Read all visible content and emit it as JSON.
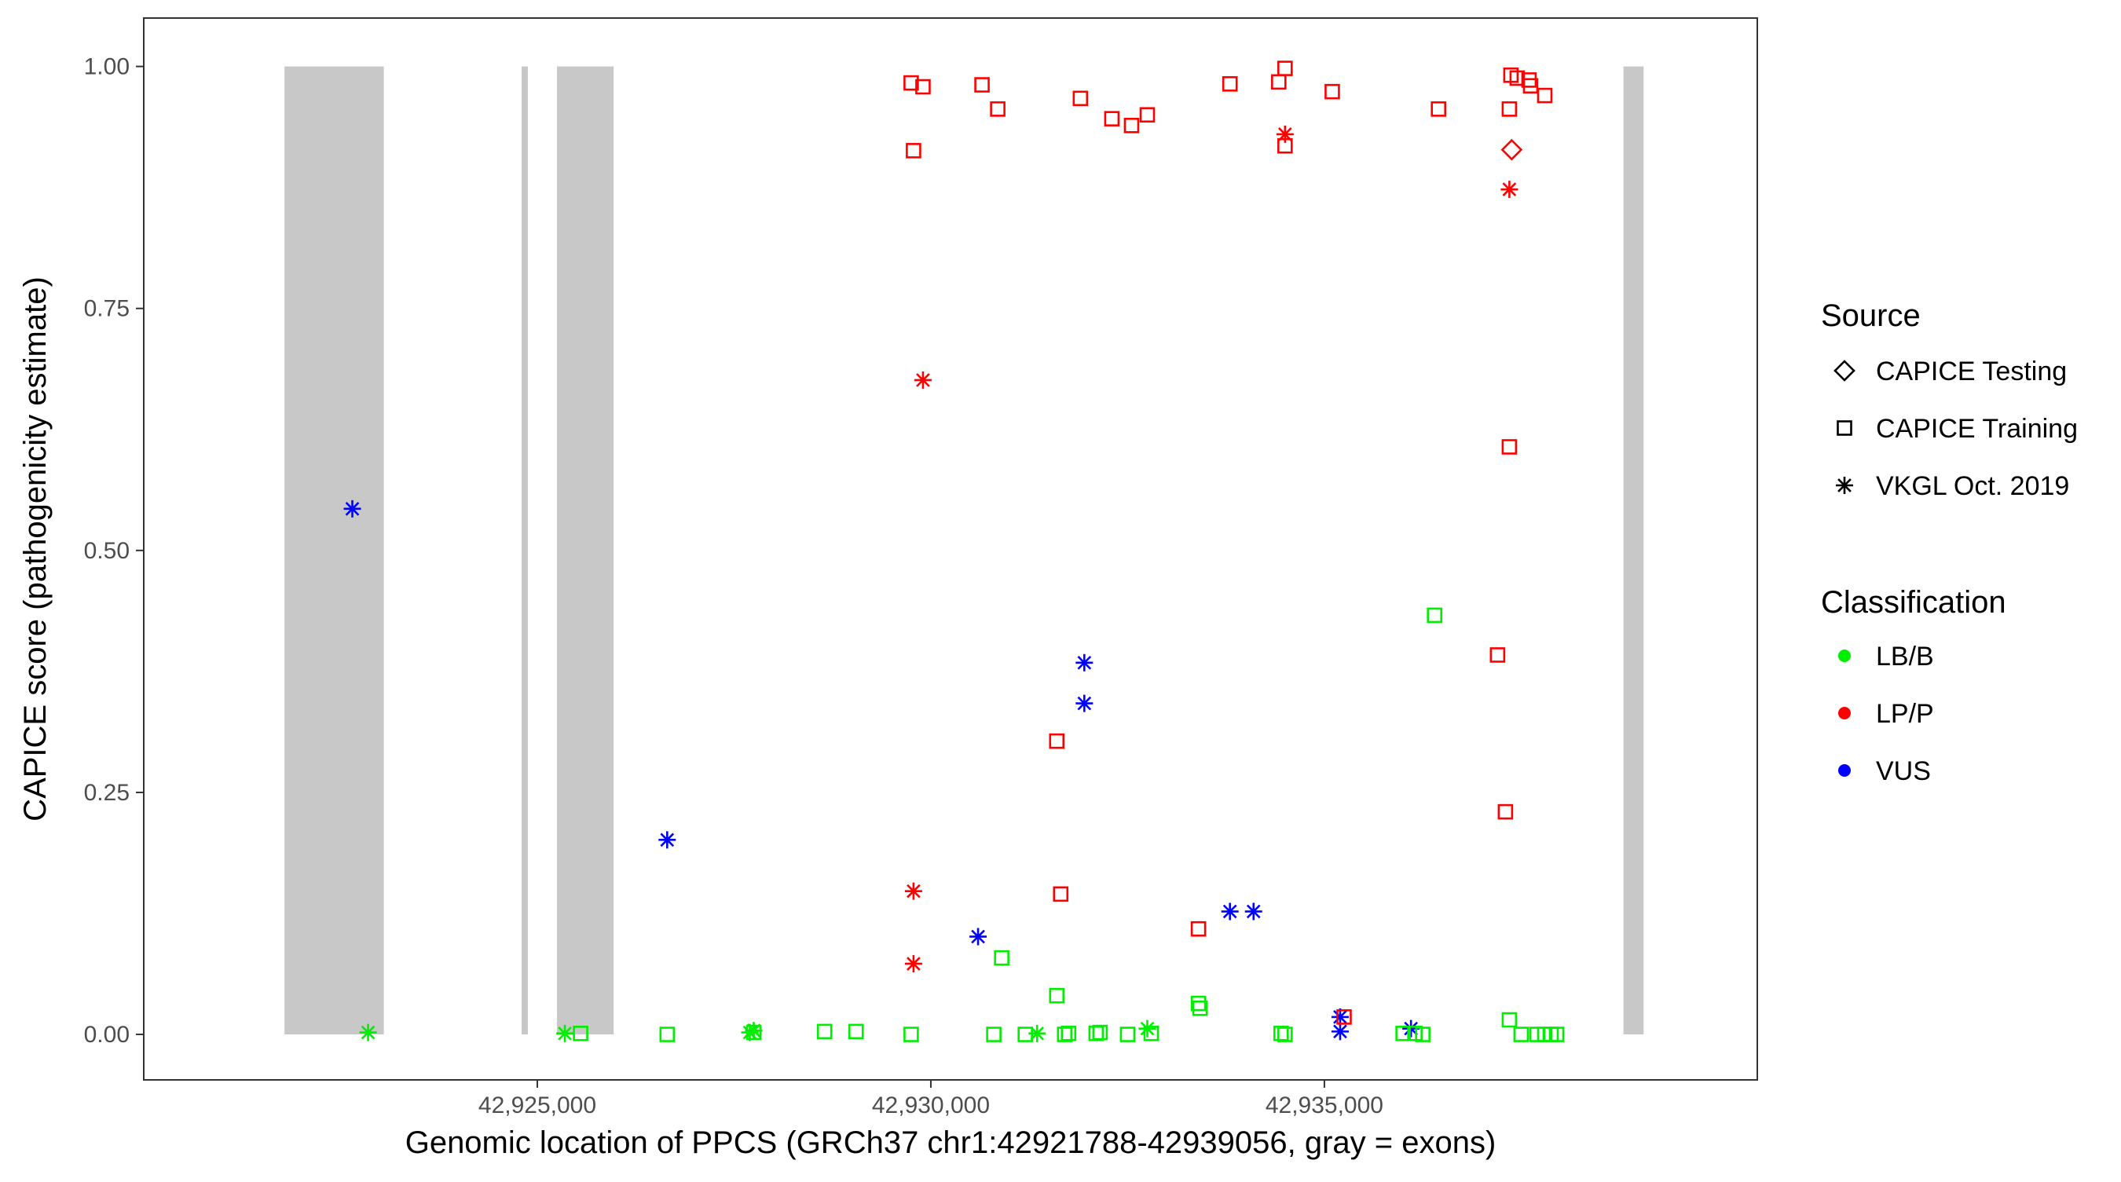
{
  "chart_data": {
    "type": "scatter",
    "title": "",
    "xlabel": "Genomic location of PPCS (GRCh37 chr1:42921788-42939056, gray = exons)",
    "ylabel": "CAPICE score (pathogenicity estimate)",
    "xlim": [
      42920000,
      42940500
    ],
    "ylim": [
      -0.047,
      1.05
    ],
    "x_ticks": [
      42925000,
      42930000,
      42935000
    ],
    "x_tick_labels": [
      "42,925,000",
      "42,930,000",
      "42,935,000"
    ],
    "y_ticks": [
      0,
      0.25,
      0.5,
      0.75,
      1
    ],
    "y_tick_labels": [
      "0.00",
      "0.25",
      "0.50",
      "0.75",
      "1.00"
    ],
    "grid": false,
    "exons": [
      [
        42921788,
        42923050
      ],
      [
        42924800,
        42924880
      ],
      [
        42925250,
        42925970
      ],
      [
        42938800,
        42939056
      ]
    ],
    "exon_color": "#c8c8c8",
    "legend_placement": "right",
    "legend": {
      "source_title": "Source",
      "source_items": [
        {
          "label": "CAPICE Testing",
          "shape": "diamond"
        },
        {
          "label": "CAPICE Training",
          "shape": "square"
        },
        {
          "label": "VKGL Oct. 2019",
          "shape": "asterisk"
        }
      ],
      "class_title": "Classification",
      "class_items": [
        {
          "label": "LB/B",
          "color": "#00ee00"
        },
        {
          "label": "LP/P",
          "color": "#ff0000"
        },
        {
          "label": "VUS",
          "color": "#0000ff"
        }
      ]
    },
    "colors": {
      "LB/B": "#00ee00",
      "LP/P": "#ff0000",
      "VUS": "#0000ff"
    },
    "points": [
      {
        "x": 42922650,
        "y": 0.543,
        "source": "VKGL Oct. 2019",
        "class": "VUS"
      },
      {
        "x": 42926650,
        "y": 0.201,
        "source": "VKGL Oct. 2019",
        "class": "VUS"
      },
      {
        "x": 42930600,
        "y": 0.101,
        "source": "VKGL Oct. 2019",
        "class": "VUS"
      },
      {
        "x": 42931950,
        "y": 0.384,
        "source": "VKGL Oct. 2019",
        "class": "VUS"
      },
      {
        "x": 42931950,
        "y": 0.342,
        "source": "VKGL Oct. 2019",
        "class": "VUS"
      },
      {
        "x": 42933800,
        "y": 0.127,
        "source": "VKGL Oct. 2019",
        "class": "VUS"
      },
      {
        "x": 42934100,
        "y": 0.127,
        "source": "VKGL Oct. 2019",
        "class": "VUS"
      },
      {
        "x": 42935200,
        "y": 0.018,
        "source": "VKGL Oct. 2019",
        "class": "VUS"
      },
      {
        "x": 42935200,
        "y": 0.003,
        "source": "VKGL Oct. 2019",
        "class": "VUS"
      },
      {
        "x": 42936100,
        "y": 0.006,
        "source": "VKGL Oct. 2019",
        "class": "VUS"
      },
      {
        "x": 42929900,
        "y": 0.676,
        "source": "VKGL Oct. 2019",
        "class": "LP/P"
      },
      {
        "x": 42929780,
        "y": 0.148,
        "source": "VKGL Oct. 2019",
        "class": "LP/P"
      },
      {
        "x": 42929780,
        "y": 0.073,
        "source": "VKGL Oct. 2019",
        "class": "LP/P"
      },
      {
        "x": 42934500,
        "y": 0.93,
        "source": "VKGL Oct. 2019",
        "class": "LP/P"
      },
      {
        "x": 42937350,
        "y": 0.873,
        "source": "VKGL Oct. 2019",
        "class": "LP/P"
      },
      {
        "x": 42937380,
        "y": 0.914,
        "source": "CAPICE Testing",
        "class": "LP/P"
      },
      {
        "x": 42929750,
        "y": 0.983,
        "source": "CAPICE Training",
        "class": "LP/P"
      },
      {
        "x": 42929900,
        "y": 0.979,
        "source": "CAPICE Training",
        "class": "LP/P"
      },
      {
        "x": 42929780,
        "y": 0.913,
        "source": "CAPICE Training",
        "class": "LP/P"
      },
      {
        "x": 42930650,
        "y": 0.981,
        "source": "CAPICE Training",
        "class": "LP/P"
      },
      {
        "x": 42930850,
        "y": 0.956,
        "source": "CAPICE Training",
        "class": "LP/P"
      },
      {
        "x": 42931900,
        "y": 0.967,
        "source": "CAPICE Training",
        "class": "LP/P"
      },
      {
        "x": 42932300,
        "y": 0.946,
        "source": "CAPICE Training",
        "class": "LP/P"
      },
      {
        "x": 42932550,
        "y": 0.939,
        "source": "CAPICE Training",
        "class": "LP/P"
      },
      {
        "x": 42932750,
        "y": 0.95,
        "source": "CAPICE Training",
        "class": "LP/P"
      },
      {
        "x": 42933800,
        "y": 0.982,
        "source": "CAPICE Training",
        "class": "LP/P"
      },
      {
        "x": 42934420,
        "y": 0.984,
        "source": "CAPICE Training",
        "class": "LP/P"
      },
      {
        "x": 42934500,
        "y": 0.998,
        "source": "CAPICE Training",
        "class": "LP/P"
      },
      {
        "x": 42934500,
        "y": 0.918,
        "source": "CAPICE Training",
        "class": "LP/P"
      },
      {
        "x": 42935100,
        "y": 0.974,
        "source": "CAPICE Training",
        "class": "LP/P"
      },
      {
        "x": 42936450,
        "y": 0.956,
        "source": "CAPICE Training",
        "class": "LP/P"
      },
      {
        "x": 42937350,
        "y": 0.956,
        "source": "CAPICE Training",
        "class": "LP/P"
      },
      {
        "x": 42937370,
        "y": 0.991,
        "source": "CAPICE Training",
        "class": "LP/P"
      },
      {
        "x": 42937450,
        "y": 0.988,
        "source": "CAPICE Training",
        "class": "LP/P"
      },
      {
        "x": 42937600,
        "y": 0.986,
        "source": "CAPICE Training",
        "class": "LP/P"
      },
      {
        "x": 42937620,
        "y": 0.98,
        "source": "CAPICE Training",
        "class": "LP/P"
      },
      {
        "x": 42937800,
        "y": 0.97,
        "source": "CAPICE Training",
        "class": "LP/P"
      },
      {
        "x": 42937350,
        "y": 0.607,
        "source": "CAPICE Training",
        "class": "LP/P"
      },
      {
        "x": 42937200,
        "y": 0.392,
        "source": "CAPICE Training",
        "class": "LP/P"
      },
      {
        "x": 42937300,
        "y": 0.23,
        "source": "CAPICE Training",
        "class": "LP/P"
      },
      {
        "x": 42931600,
        "y": 0.303,
        "source": "CAPICE Training",
        "class": "LP/P"
      },
      {
        "x": 42931650,
        "y": 0.145,
        "source": "CAPICE Training",
        "class": "LP/P"
      },
      {
        "x": 42933400,
        "y": 0.109,
        "source": "CAPICE Training",
        "class": "LP/P"
      },
      {
        "x": 42935250,
        "y": 0.018,
        "source": "CAPICE Training",
        "class": "LP/P"
      },
      {
        "x": 42922850,
        "y": 0.002,
        "source": "VKGL Oct. 2019",
        "class": "LB/B"
      },
      {
        "x": 42925350,
        "y": 0.001,
        "source": "VKGL Oct. 2019",
        "class": "LB/B"
      },
      {
        "x": 42927700,
        "y": 0.002,
        "source": "VKGL Oct. 2019",
        "class": "LB/B"
      },
      {
        "x": 42927750,
        "y": 0.004,
        "source": "VKGL Oct. 2019",
        "class": "LB/B"
      },
      {
        "x": 42931350,
        "y": 0.001,
        "source": "VKGL Oct. 2019",
        "class": "LB/B"
      },
      {
        "x": 42932750,
        "y": 0.006,
        "source": "VKGL Oct. 2019",
        "class": "LB/B"
      },
      {
        "x": 42925550,
        "y": 0.001,
        "source": "CAPICE Training",
        "class": "LB/B"
      },
      {
        "x": 42926650,
        "y": 0.0,
        "source": "CAPICE Training",
        "class": "LB/B"
      },
      {
        "x": 42927750,
        "y": 0.002,
        "source": "CAPICE Training",
        "class": "LB/B"
      },
      {
        "x": 42928650,
        "y": 0.003,
        "source": "CAPICE Training",
        "class": "LB/B"
      },
      {
        "x": 42929050,
        "y": 0.003,
        "source": "CAPICE Training",
        "class": "LB/B"
      },
      {
        "x": 42929750,
        "y": 0.0,
        "source": "CAPICE Training",
        "class": "LB/B"
      },
      {
        "x": 42930900,
        "y": 0.079,
        "source": "CAPICE Training",
        "class": "LB/B"
      },
      {
        "x": 42930800,
        "y": 0.0,
        "source": "CAPICE Training",
        "class": "LB/B"
      },
      {
        "x": 42931200,
        "y": 0.0,
        "source": "CAPICE Training",
        "class": "LB/B"
      },
      {
        "x": 42931600,
        "y": 0.04,
        "source": "CAPICE Training",
        "class": "LB/B"
      },
      {
        "x": 42931700,
        "y": 0.0,
        "source": "CAPICE Training",
        "class": "LB/B"
      },
      {
        "x": 42931750,
        "y": 0.001,
        "source": "CAPICE Training",
        "class": "LB/B"
      },
      {
        "x": 42932100,
        "y": 0.001,
        "source": "CAPICE Training",
        "class": "LB/B"
      },
      {
        "x": 42932150,
        "y": 0.002,
        "source": "CAPICE Training",
        "class": "LB/B"
      },
      {
        "x": 42932500,
        "y": 0.0,
        "source": "CAPICE Training",
        "class": "LB/B"
      },
      {
        "x": 42932800,
        "y": 0.001,
        "source": "CAPICE Training",
        "class": "LB/B"
      },
      {
        "x": 42933400,
        "y": 0.032,
        "source": "CAPICE Training",
        "class": "LB/B"
      },
      {
        "x": 42933420,
        "y": 0.027,
        "source": "CAPICE Training",
        "class": "LB/B"
      },
      {
        "x": 42934450,
        "y": 0.001,
        "source": "CAPICE Training",
        "class": "LB/B"
      },
      {
        "x": 42934500,
        "y": 0.0,
        "source": "CAPICE Training",
        "class": "LB/B"
      },
      {
        "x": 42936000,
        "y": 0.001,
        "source": "CAPICE Training",
        "class": "LB/B"
      },
      {
        "x": 42936150,
        "y": 0.001,
        "source": "CAPICE Training",
        "class": "LB/B"
      },
      {
        "x": 42936250,
        "y": 0.0,
        "source": "CAPICE Training",
        "class": "LB/B"
      },
      {
        "x": 42936400,
        "y": 0.433,
        "source": "CAPICE Training",
        "class": "LB/B"
      },
      {
        "x": 42937350,
        "y": 0.015,
        "source": "CAPICE Training",
        "class": "LB/B"
      },
      {
        "x": 42937500,
        "y": 0.0,
        "source": "CAPICE Training",
        "class": "LB/B"
      },
      {
        "x": 42937700,
        "y": 0.0,
        "source": "CAPICE Training",
        "class": "LB/B"
      },
      {
        "x": 42937800,
        "y": 0.0,
        "source": "CAPICE Training",
        "class": "LB/B"
      },
      {
        "x": 42937880,
        "y": 0.0,
        "source": "CAPICE Training",
        "class": "LB/B"
      },
      {
        "x": 42937950,
        "y": 0.0,
        "source": "CAPICE Training",
        "class": "LB/B"
      }
    ]
  }
}
